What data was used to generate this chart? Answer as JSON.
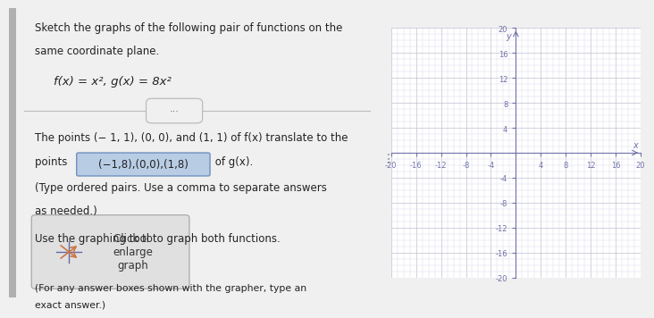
{
  "title_text": "Sketch the graphs of the following pair of functions on the\nsame coordinate plane.",
  "function_line": "f(x) = x², g(x) = 8x²",
  "body_line1": "The points (− 1, 1), (0, 0), and (1, 1) of f(x) translate to the",
  "body_line2": "points",
  "highlighted_text": "(−1,8),(0,0),(1,8)",
  "body_line3": "of g(x).",
  "body_line4": "(Type ordered pairs. Use a comma to separate answers",
  "body_line5": "as needed.)",
  "body_line6": "Use the graphing tool to graph both functions.",
  "click_text": "Click to\nenlarge\ngraph",
  "footer_text": "(For any answer boxes shown with the grapher, type an\nexact answer.)",
  "graph_xlim": [
    -20,
    20
  ],
  "graph_ylim": [
    -20,
    20
  ],
  "grid_color": "#c8c8d8",
  "axis_color": "#7070aa",
  "tick_label_color": "#7070aa",
  "bg_left": "#f0f0f0",
  "bg_graph": "#ffffff",
  "highlight_color": "#b8cce4",
  "highlight_border": "#7090c0",
  "separator_color": "#bbbbbb",
  "left_border_color": "#808080",
  "panel_split": 0.595
}
